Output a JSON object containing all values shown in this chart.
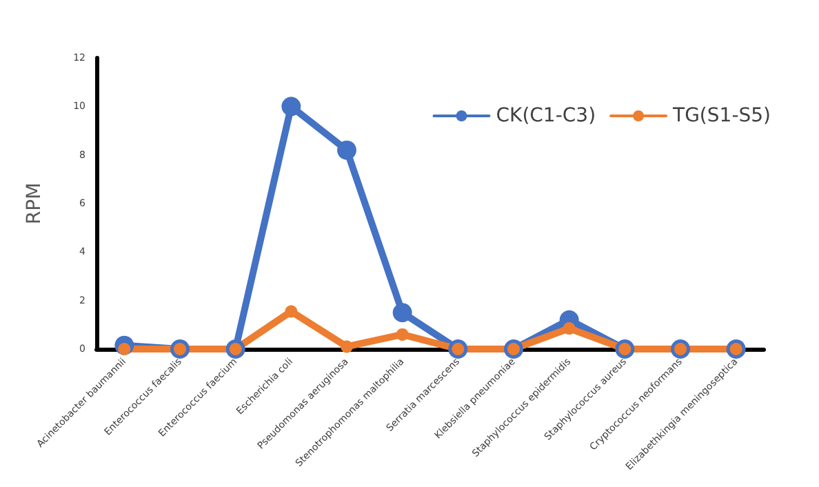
{
  "chart_data": {
    "type": "line",
    "ylabel": "RPM",
    "categories": [
      "Acinetobacter baumannii",
      "Enterococcus faecalis",
      "Enterococcus faecium",
      "Escherichia coli",
      "Pseudomonas aeruginosa",
      "Stenotrophomonas maltophilia",
      "Serratia marcescens",
      "Klebsiella pneumoniae",
      "Staphylococcus epidermidis",
      "Staphylococcus aureus",
      "Cryptococcus neoformans",
      "Elizabethkingia meningoseptica"
    ],
    "series": [
      {
        "name": "CK(C1-C3)",
        "color": "#4472c4",
        "values": [
          0.15,
          0,
          0,
          10,
          8.2,
          1.5,
          0,
          0,
          1.2,
          0,
          0,
          0
        ]
      },
      {
        "name": "TG(S1-S5)",
        "color": "#ed7d31",
        "values": [
          0,
          0,
          0,
          1.55,
          0.1,
          0.6,
          0,
          0,
          0.85,
          0,
          0,
          0
        ]
      }
    ],
    "ylim": [
      0,
      12
    ],
    "yticks": [
      0,
      2,
      4,
      6,
      8,
      10,
      12
    ],
    "grid": false,
    "legend": "top right",
    "marker": "circle",
    "line_style": "solid"
  }
}
